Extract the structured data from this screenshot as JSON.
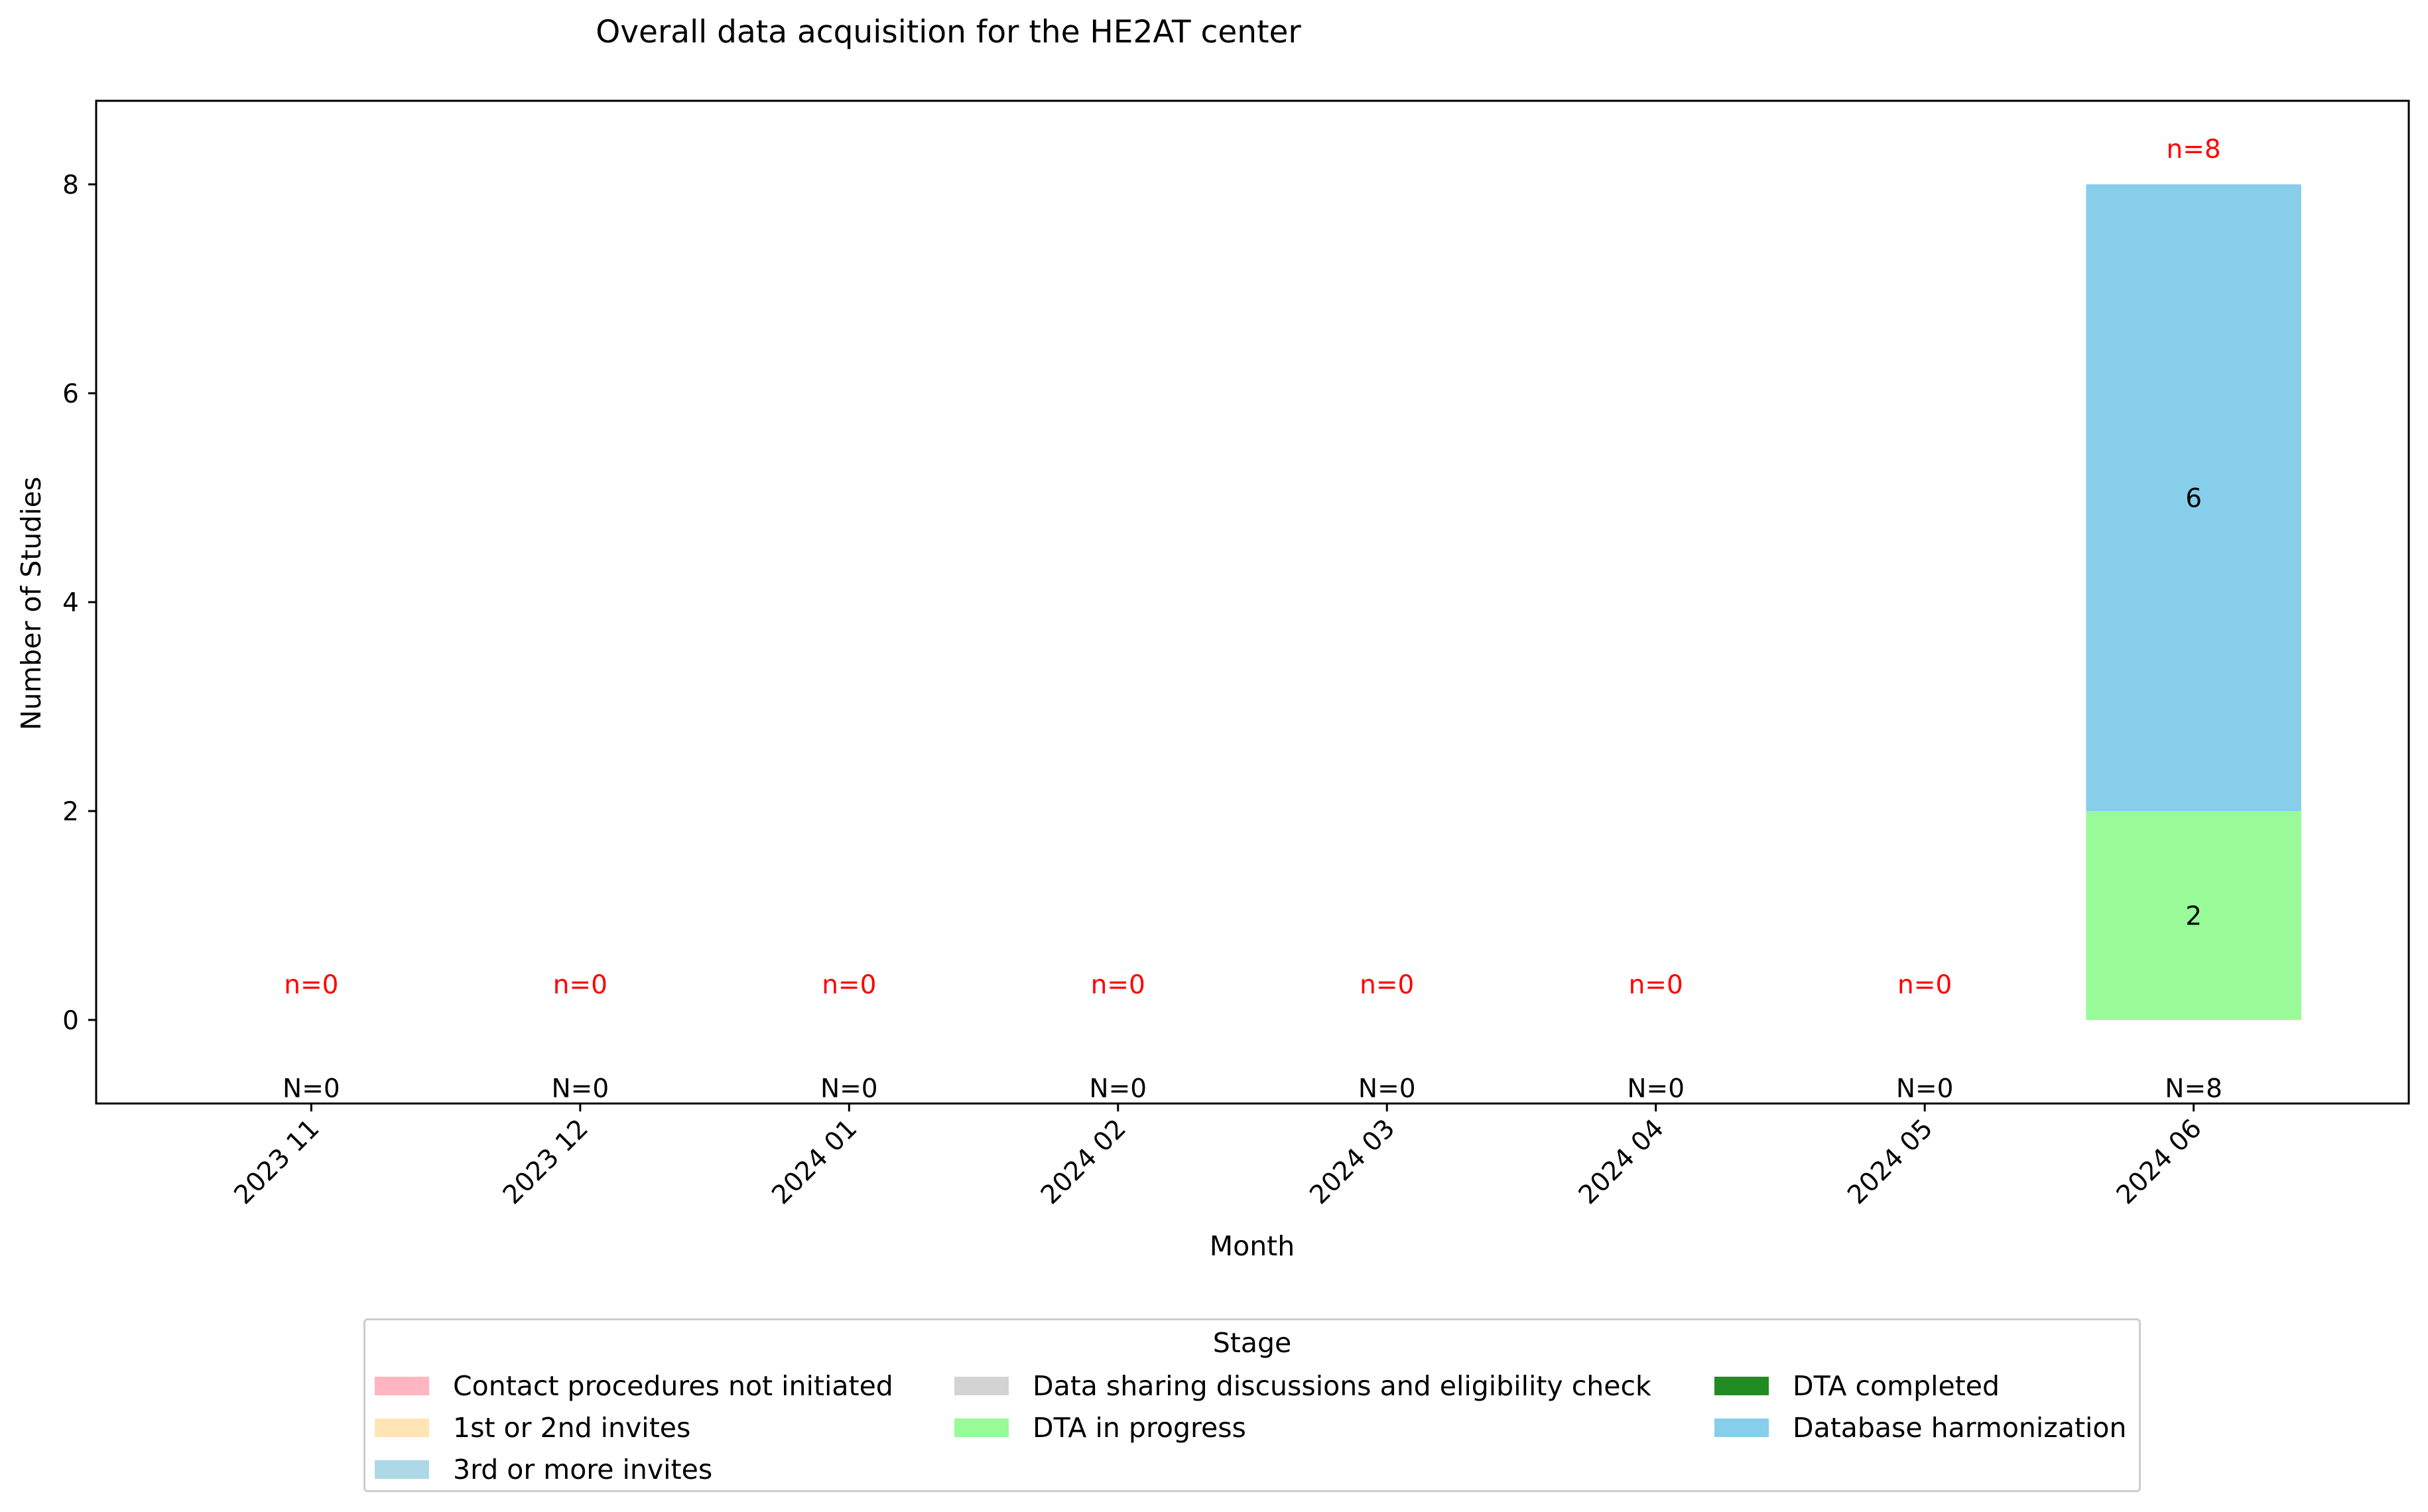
{
  "chart_data": {
    "type": "bar",
    "stacked": true,
    "title": "Overall data acquisition for the HE2AT center",
    "xlabel": "Month",
    "ylabel": "Number of Studies",
    "ylim": [
      -0.8,
      8.8
    ],
    "yticks": [
      0,
      2,
      4,
      6,
      8
    ],
    "grid": false,
    "categories": [
      "2023 11",
      "2023 12",
      "2024 01",
      "2024 02",
      "2024 03",
      "2024 04",
      "2024 05",
      "2024 06"
    ],
    "series": [
      {
        "name": "Contact procedures not initiated",
        "color": "#ffb6c1",
        "values": [
          0,
          0,
          0,
          0,
          0,
          0,
          0,
          0
        ]
      },
      {
        "name": "1st or 2nd invites",
        "color": "#ffe4b5",
        "values": [
          0,
          0,
          0,
          0,
          0,
          0,
          0,
          0
        ]
      },
      {
        "name": "3rd or more invites",
        "color": "#add8e6",
        "values": [
          0,
          0,
          0,
          0,
          0,
          0,
          0,
          0
        ]
      },
      {
        "name": "Data sharing discussions and eligibility check",
        "color": "#d3d3d3",
        "values": [
          0,
          0,
          0,
          0,
          0,
          0,
          0,
          0
        ]
      },
      {
        "name": "DTA in progress",
        "color": "#98fb98",
        "values": [
          0,
          0,
          0,
          0,
          0,
          0,
          0,
          2
        ]
      },
      {
        "name": "DTA completed",
        "color": "#228b22",
        "values": [
          0,
          0,
          0,
          0,
          0,
          0,
          0,
          0
        ]
      },
      {
        "name": "Database harmonization",
        "color": "#87ceeb",
        "values": [
          0,
          0,
          0,
          0,
          0,
          0,
          0,
          6
        ]
      }
    ],
    "n_labels": [
      "n=0",
      "n=0",
      "n=0",
      "n=0",
      "n=0",
      "n=0",
      "n=0",
      "n=8"
    ],
    "N_labels": [
      "N=0",
      "N=0",
      "N=0",
      "N=0",
      "N=0",
      "N=0",
      "N=0",
      "N=8"
    ],
    "legend": {
      "title": "Stage",
      "position": "bottom-center"
    },
    "colors": {
      "n_label": "#ff0000",
      "N_label": "#000000"
    }
  }
}
